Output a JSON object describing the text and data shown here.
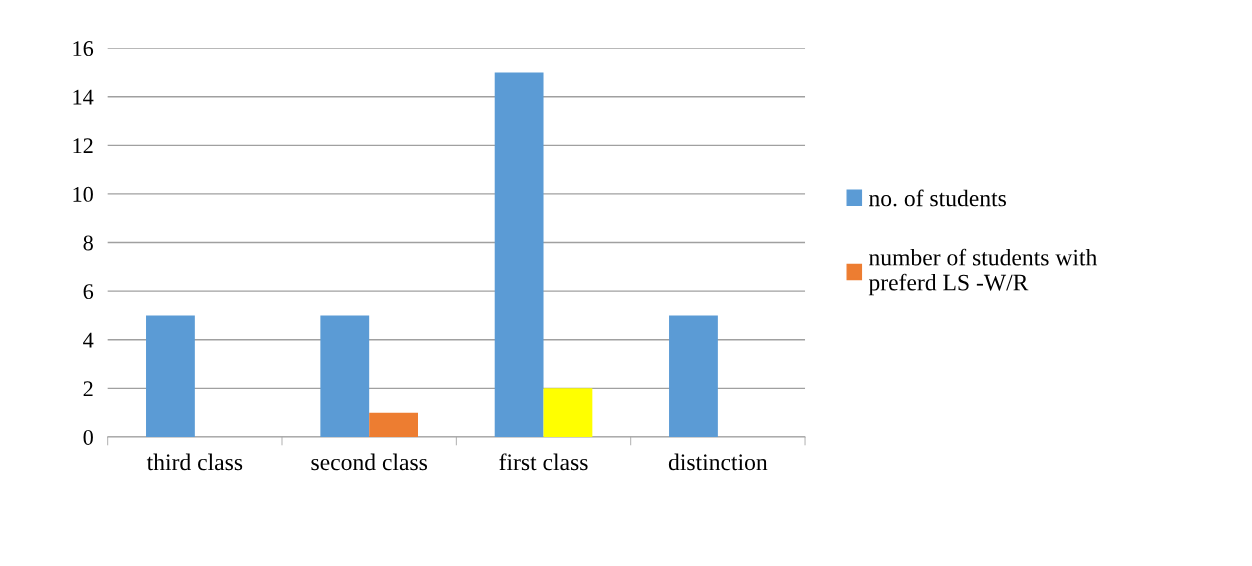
{
  "chart_data": {
    "type": "bar",
    "categories": [
      "third class",
      "second class",
      "first class",
      "distinction"
    ],
    "series": [
      {
        "name": "no. of students",
        "color": "#5b9bd5",
        "values": [
          5,
          5,
          15,
          5
        ]
      },
      {
        "name": "number of students with preferd LS -W/R",
        "color": "#ed7d31",
        "colors": [
          "#ed7d31",
          "#ed7d31",
          "#ffff00",
          "#ed7d31"
        ],
        "values": [
          0,
          1,
          2,
          0
        ]
      }
    ],
    "ylim": [
      0,
      16
    ],
    "yticks": [
      0,
      2,
      4,
      6,
      8,
      10,
      12,
      14,
      16
    ],
    "grid": "y",
    "legend": "right"
  }
}
